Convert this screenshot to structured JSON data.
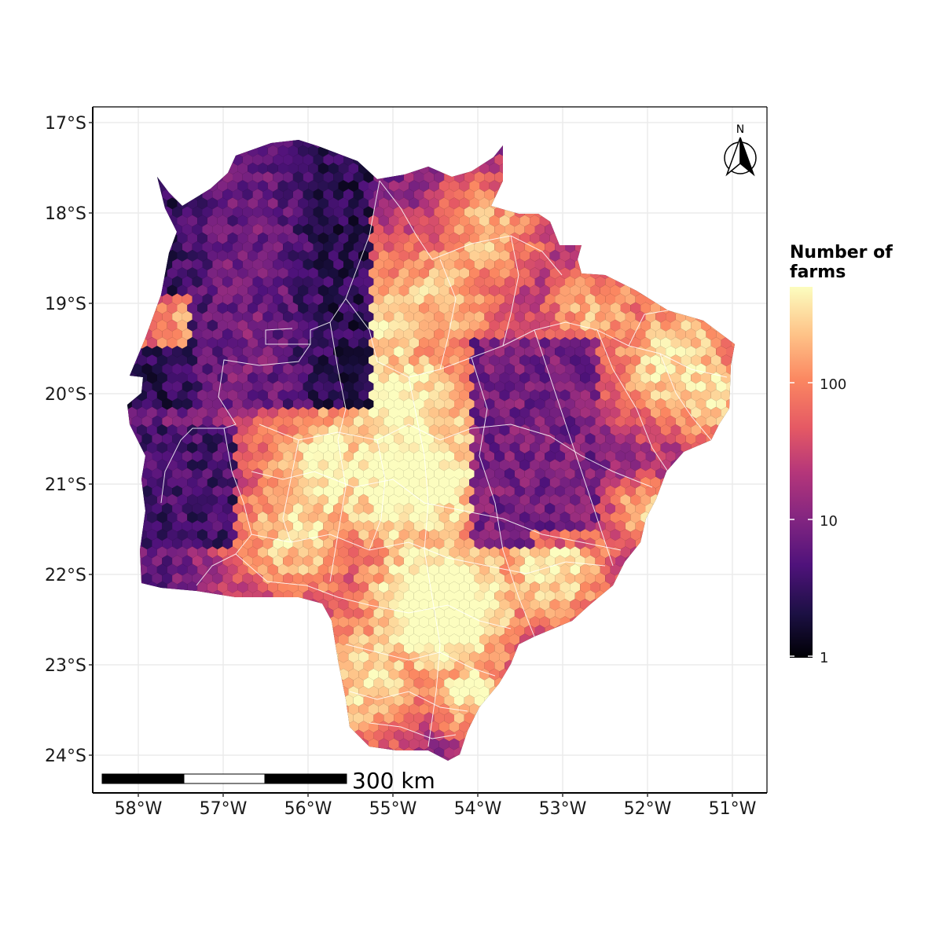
{
  "map": {
    "lat_ticks": [
      "17°S",
      "18°S",
      "19°S",
      "20°S",
      "21°S",
      "22°S",
      "23°S",
      "24°S"
    ],
    "lon_ticks": [
      "58°W",
      "57°W",
      "56°W",
      "55°W",
      "54°W",
      "53°W",
      "52°W",
      "51°W"
    ],
    "extent": {
      "lon": [
        -58.5,
        -50.6
      ],
      "lat": [
        -24.4,
        -16.85
      ]
    },
    "grid": true,
    "fill": "hexbin",
    "palette": "magma",
    "scale_type": "log",
    "north_arrow": {
      "label": "N",
      "placement": "top-right"
    },
    "scale_bar": {
      "label": "300 km",
      "placement": "bottom-left"
    }
  },
  "legend": {
    "title_line1": "Number of",
    "title_line2": "farms",
    "ticks": [
      "1",
      "10",
      "100"
    ],
    "range": [
      1,
      500
    ]
  },
  "colors": {
    "grid": "#ebebeb",
    "boundary": "#ffffff",
    "palette_stops": [
      "#000004",
      "#1c1044",
      "#4f127b",
      "#812581",
      "#b5367a",
      "#e55964",
      "#fb8761",
      "#fec287",
      "#fcfdbf"
    ]
  }
}
